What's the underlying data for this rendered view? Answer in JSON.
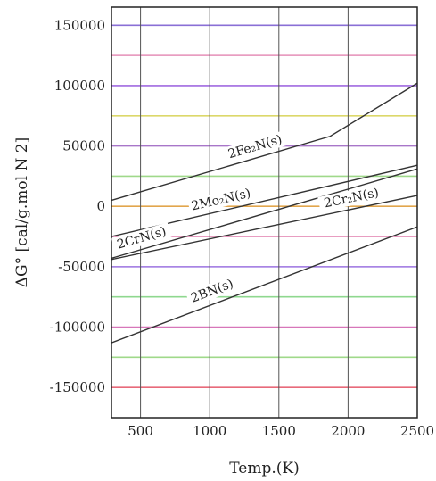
{
  "chart_data": {
    "type": "line",
    "title": "",
    "xlabel": "Temp.(K)",
    "ylabel": "ΔG° [cal/g.mol N 2]",
    "xlim": [
      290,
      2500
    ],
    "ylim": [
      -175000,
      165000
    ],
    "x_ticks": [
      500,
      1000,
      1500,
      2000,
      2500
    ],
    "x_tick_labels": [
      "500",
      "1000",
      "1500",
      "2000",
      "2500"
    ],
    "y_ticks": [
      150000,
      100000,
      50000,
      0,
      -50000,
      -100000,
      -150000
    ],
    "y_tick_labels": [
      "150000",
      "100000",
      "50000",
      "0",
      "-50000",
      "-100000",
      "-150000"
    ],
    "grid": true,
    "horizontal_grid_lines": [
      {
        "y": 150000,
        "color": "#8a6fd6"
      },
      {
        "y": 125000,
        "color": "#e58fb8"
      },
      {
        "y": 100000,
        "color": "#a06ae0"
      },
      {
        "y": 75000,
        "color": "#dcd86a"
      },
      {
        "y": 50000,
        "color": "#a876c9"
      },
      {
        "y": 25000,
        "color": "#9fd98a"
      },
      {
        "y": 0,
        "color": "#e2a64d"
      },
      {
        "y": -25000,
        "color": "#e58fb8"
      },
      {
        "y": -50000,
        "color": "#9b73e0"
      },
      {
        "y": -75000,
        "color": "#8fd88f"
      },
      {
        "y": -100000,
        "color": "#d777b9"
      },
      {
        "y": -125000,
        "color": "#9fd98a"
      },
      {
        "y": -150000,
        "color": "#e86a7a"
      }
    ],
    "series": [
      {
        "name": "2Fe₂N(s)",
        "x": [
          290,
          1870,
          2500
        ],
        "y": [
          5000,
          58000,
          102000
        ]
      },
      {
        "name": "2Mo₂N(s)",
        "x": [
          290,
          2500
        ],
        "y": [
          -25000,
          34000
        ]
      },
      {
        "name": "2CrN(s)",
        "x": [
          290,
          2500
        ],
        "y": [
          -43000,
          31000
        ]
      },
      {
        "name": "2Cr₂N(s)",
        "x": [
          290,
          2500
        ],
        "y": [
          -44000,
          9000
        ]
      },
      {
        "name": "2BN(s)",
        "x": [
          290,
          2500
        ],
        "y": [
          -113000,
          -17000
        ]
      }
    ]
  }
}
